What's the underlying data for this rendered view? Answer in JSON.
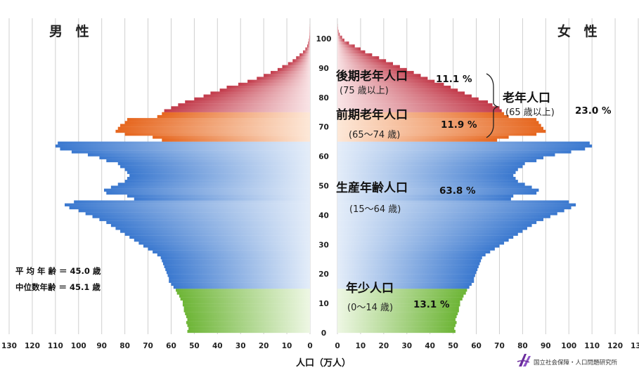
{
  "chart_data": {
    "type": "bar",
    "orientation": "horizontal",
    "subtype": "population-pyramid",
    "left_title": "男 性",
    "right_title": "女 性",
    "xlabel": "人口（万人）",
    "x_ticks_left": [
      "130",
      "120",
      "110",
      "100",
      "90",
      "80",
      "70",
      "60",
      "50",
      "40",
      "30",
      "20",
      "10",
      "0"
    ],
    "x_ticks_right": [
      "0",
      "10",
      "20",
      "30",
      "40",
      "50",
      "60",
      "70",
      "80",
      "90",
      "100",
      "110",
      "120",
      "130"
    ],
    "age_ticks": [
      "0",
      "10",
      "20",
      "30",
      "40",
      "50",
      "60",
      "70",
      "80",
      "90",
      "100"
    ],
    "xlim": [
      0,
      130
    ],
    "ylim": [
      0,
      105
    ],
    "grid": true,
    "series": [
      {
        "name": "男 性",
        "side": "left",
        "values_by_age": [
          53,
          52.5,
          53,
          53.5,
          53,
          53.5,
          54,
          54.5,
          54.5,
          55,
          55,
          56,
          56.5,
          57.5,
          58,
          59,
          60,
          61,
          61,
          61.5,
          62,
          62.5,
          63,
          63.5,
          64,
          64.5,
          66,
          68,
          70,
          72,
          74,
          76,
          78,
          80,
          82,
          84,
          86,
          88,
          91,
          94,
          97,
          100,
          104,
          106,
          102,
          76,
          79,
          88,
          89,
          86,
          83,
          80,
          79,
          78,
          79,
          80,
          82,
          83,
          88,
          91,
          96,
          103,
          108,
          110,
          109,
          64,
          68,
          80,
          84,
          83,
          82,
          80,
          79,
          66,
          64,
          63,
          60,
          57,
          54,
          50,
          46,
          43,
          39,
          36,
          31,
          27,
          23,
          20,
          17,
          14,
          12,
          9.5,
          7.5,
          6,
          4.5,
          3,
          2,
          1.2,
          0.8,
          0.5,
          0.3,
          0.2,
          0.1,
          0.05,
          0.02
        ]
      },
      {
        "name": "女 性",
        "side": "right",
        "values_by_age": [
          51,
          50.5,
          51,
          51.5,
          51,
          51.5,
          52,
          52.5,
          52.5,
          53,
          53,
          54,
          54.5,
          55.5,
          56,
          57,
          58,
          59,
          59,
          59.5,
          60,
          60.5,
          61,
          61.5,
          62,
          62.5,
          64,
          66,
          68,
          70,
          72,
          74,
          76,
          78,
          80,
          82,
          84,
          86,
          89,
          92,
          95,
          98,
          101,
          103,
          100,
          75,
          76,
          86,
          87,
          84,
          81,
          78,
          77,
          76,
          77,
          78,
          80,
          81,
          86,
          89,
          94,
          101,
          107,
          110,
          109,
          69,
          74,
          86,
          90,
          89,
          88,
          87,
          86,
          74,
          72,
          71,
          70,
          67,
          65,
          61,
          58,
          55,
          52,
          49,
          46,
          42,
          39,
          36,
          33,
          30,
          27,
          24,
          21,
          18,
          15,
          12,
          10,
          7.5,
          5,
          3,
          2,
          1,
          0.5,
          0.2,
          0.05
        ]
      }
    ],
    "age_groups": [
      {
        "name": "年少人口",
        "range": "(0〜14 歳)",
        "pct": "13.1 %",
        "age_from": 0,
        "age_to": 14
      },
      {
        "name": "生産年齢人口",
        "range": "(15〜64 歳)",
        "pct": "63.8 %",
        "age_from": 15,
        "age_to": 64
      },
      {
        "name": "前期老年人口",
        "range": "(65〜74 歳)",
        "pct": "11.9 %",
        "age_from": 65,
        "age_to": 74
      },
      {
        "name": "後期老年人口",
        "range": "(75 歳以上)",
        "pct": "11.1 %",
        "age_from": 75,
        "age_to": 105
      }
    ],
    "combined_group": {
      "name": "老年人口",
      "range": "(65 歳以上)",
      "pct": "23.0 %"
    },
    "stats": {
      "mean_age": "平 均 年 齢 ＝ 45.0 歳",
      "median_age": "中位数年齢 ＝ 45.1 歳"
    },
    "colors": {
      "young": "#7cc142",
      "working": "#4a86d6",
      "early_old": "#e8732a",
      "late_old": "#c8404e",
      "grid": "#cfcfcf"
    }
  },
  "logo": {
    "text": "国立社会保障・人口問題研究所",
    "icon": "ipss-logo-icon"
  }
}
